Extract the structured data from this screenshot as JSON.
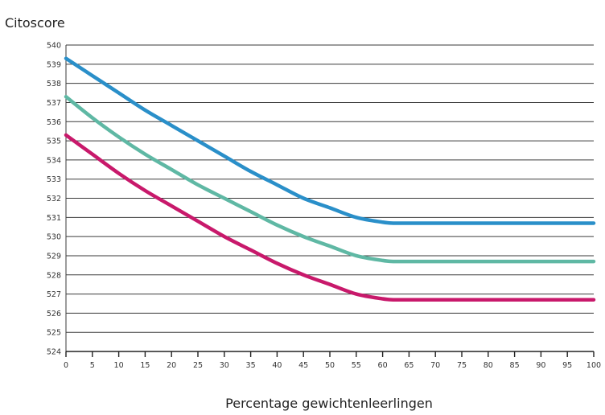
{
  "chart_data": {
    "type": "line",
    "title": "",
    "ylabel": "Citoscore",
    "xlabel": "Percentage gewichtenleerlingen",
    "xlim": [
      0,
      100
    ],
    "ylim": [
      524,
      540
    ],
    "x_ticks": [
      0,
      5,
      10,
      15,
      20,
      25,
      30,
      35,
      40,
      45,
      50,
      55,
      60,
      65,
      70,
      75,
      80,
      85,
      90,
      95,
      100
    ],
    "y_ticks": [
      524,
      525,
      526,
      527,
      528,
      529,
      530,
      531,
      532,
      533,
      534,
      535,
      536,
      537,
      538,
      539,
      540
    ],
    "grid": "horizontal",
    "legend": "none",
    "series": [
      {
        "color": "#2a8fc9",
        "x": [
          0,
          5,
          10,
          15,
          20,
          25,
          30,
          35,
          40,
          45,
          50,
          55,
          60,
          62,
          65,
          70,
          75,
          80,
          85,
          90,
          95,
          100
        ],
        "values": [
          539.3,
          538.4,
          537.5,
          536.6,
          535.8,
          535.0,
          534.2,
          533.4,
          532.7,
          532.0,
          531.5,
          531.0,
          530.75,
          530.7,
          530.7,
          530.7,
          530.7,
          530.7,
          530.7,
          530.7,
          530.7,
          530.7
        ]
      },
      {
        "color": "#5fb8a4",
        "x": [
          0,
          5,
          10,
          15,
          20,
          25,
          30,
          35,
          40,
          45,
          50,
          55,
          60,
          62,
          65,
          70,
          75,
          80,
          85,
          90,
          95,
          100
        ],
        "values": [
          537.3,
          536.2,
          535.2,
          534.3,
          533.5,
          532.7,
          532.0,
          531.3,
          530.6,
          530.0,
          529.5,
          529.0,
          528.75,
          528.7,
          528.7,
          528.7,
          528.7,
          528.7,
          528.7,
          528.7,
          528.7,
          528.7
        ]
      },
      {
        "color": "#c8196b",
        "x": [
          0,
          5,
          10,
          15,
          20,
          25,
          30,
          35,
          40,
          45,
          50,
          55,
          60,
          62,
          65,
          70,
          75,
          80,
          85,
          90,
          95,
          100
        ],
        "values": [
          535.3,
          534.3,
          533.3,
          532.4,
          531.6,
          530.8,
          530.0,
          529.3,
          528.6,
          528.0,
          527.5,
          527.0,
          526.75,
          526.7,
          526.7,
          526.7,
          526.7,
          526.7,
          526.7,
          526.7,
          526.7,
          526.7
        ]
      }
    ]
  }
}
